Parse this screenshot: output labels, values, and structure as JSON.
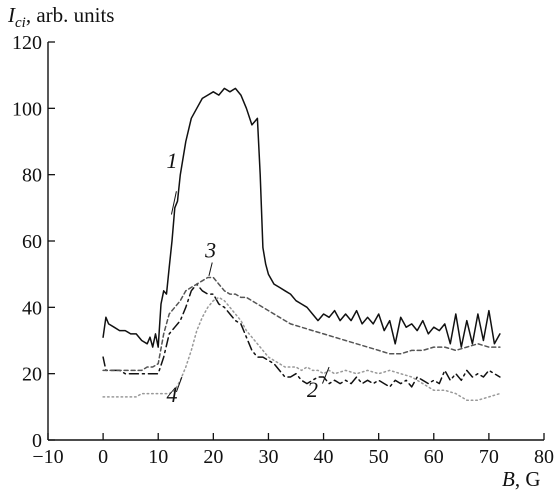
{
  "chart_data": {
    "type": "line",
    "title": "",
    "ylabel": {
      "symbol": "I",
      "subscript": "ci",
      "unit": ", arb. units"
    },
    "xlabel": {
      "symbol": "B",
      "unit": ", G"
    },
    "xlim": [
      -10,
      80
    ],
    "ylim": [
      0,
      120
    ],
    "xticks": [
      -10,
      0,
      10,
      20,
      30,
      40,
      50,
      60,
      70,
      80
    ],
    "yticks": [
      0,
      20,
      40,
      60,
      80,
      100,
      120
    ],
    "xtick_labels": [
      "−10",
      "0",
      "10",
      "20",
      "30",
      "40",
      "50",
      "60",
      "70",
      "80"
    ],
    "ytick_labels": [
      "0",
      "20",
      "40",
      "60",
      "80",
      "100",
      "120"
    ],
    "grid": false,
    "series": [
      {
        "name": "1",
        "color": "#111111",
        "dash": "solid",
        "label_at": [
          12.5,
          82
        ],
        "leader": [
          [
            13.3,
            75
          ],
          [
            12.4,
            68
          ]
        ],
        "x": [
          0,
          0.5,
          1,
          2,
          3,
          4,
          5,
          6,
          7,
          8,
          8.5,
          9,
          9.5,
          10,
          10.5,
          11,
          11.5,
          12,
          12.5,
          13,
          13.5,
          14,
          15,
          16,
          17,
          18,
          19,
          20,
          21,
          22,
          23,
          24,
          25,
          26,
          27,
          27.5,
          28,
          28.5,
          29,
          29.5,
          30,
          31,
          32,
          33,
          34,
          35,
          36,
          37,
          38,
          39,
          40,
          41,
          42,
          43,
          44,
          45,
          46,
          47,
          48,
          49,
          50,
          51,
          52,
          53,
          54,
          55,
          56,
          57,
          58,
          59,
          60,
          61,
          62,
          63,
          64,
          65,
          66,
          67,
          68,
          69,
          70,
          71,
          72
        ],
        "y": [
          31,
          37,
          35,
          34,
          33,
          33,
          32,
          32,
          30,
          29,
          31,
          28,
          32,
          28,
          41,
          45,
          44,
          52,
          60,
          70,
          72,
          80,
          90,
          97,
          100,
          103,
          104,
          105,
          104,
          106,
          105,
          106,
          104,
          100,
          95,
          96,
          97,
          80,
          58,
          53,
          50,
          47,
          46,
          45,
          44,
          42,
          41,
          40,
          38,
          36,
          38,
          37,
          39,
          36,
          38,
          36,
          39,
          35,
          37,
          35,
          38,
          33,
          36,
          29,
          37,
          34,
          35,
          33,
          36,
          32,
          34,
          33,
          35,
          29,
          38,
          28,
          36,
          29,
          38,
          30,
          39,
          29,
          32
        ]
      },
      {
        "name": "2",
        "color": "#111111",
        "dash": "9,4,2,4",
        "label_at": [
          38,
          13
        ],
        "leader": [
          [
            39.8,
            17
          ],
          [
            41,
            22
          ]
        ],
        "x": [
          0,
          0.5,
          1,
          2,
          3,
          4,
          5,
          6,
          7,
          8,
          9,
          10,
          11,
          12,
          13,
          14,
          15,
          16,
          17,
          18,
          19,
          20,
          21,
          22,
          23,
          24,
          25,
          26,
          27,
          28,
          29,
          30,
          31,
          32,
          33,
          34,
          35,
          36,
          37,
          38,
          39,
          40,
          41,
          42,
          43,
          44,
          45,
          46,
          47,
          48,
          49,
          50,
          51,
          52,
          53,
          54,
          55,
          56,
          57,
          58,
          59,
          60,
          61,
          62,
          63,
          64,
          65,
          66,
          67,
          68,
          69,
          70,
          71,
          72
        ],
        "y": [
          25,
          21,
          21,
          21,
          21,
          20,
          20,
          20,
          20,
          20,
          20,
          20,
          25,
          32,
          34,
          36,
          40,
          45,
          47,
          45,
          44,
          44,
          41,
          40,
          38,
          36,
          35,
          31,
          27,
          25,
          25,
          24,
          23,
          21,
          19,
          19,
          20,
          18,
          17,
          18,
          19,
          19,
          17,
          18,
          17,
          18,
          17,
          19,
          17,
          18,
          17,
          18,
          17,
          16,
          18,
          17,
          18,
          16,
          19,
          18,
          17,
          18,
          17,
          21,
          18,
          20,
          18,
          21,
          19,
          20,
          19,
          21,
          20,
          19
        ]
      },
      {
        "name": "3",
        "color": "#555555",
        "dash": "4,3",
        "label_at": [
          19.5,
          55
        ],
        "leader": [
          [
            19.8,
            53.5
          ],
          [
            19.2,
            49.5
          ]
        ],
        "x": [
          0,
          1,
          2,
          3,
          4,
          5,
          6,
          7,
          8,
          9,
          10,
          11,
          12,
          13,
          14,
          15,
          16,
          17,
          18,
          19,
          20,
          21,
          22,
          23,
          24,
          25,
          26,
          27,
          28,
          29,
          30,
          32,
          34,
          36,
          38,
          40,
          42,
          44,
          46,
          48,
          50,
          52,
          54,
          56,
          58,
          60,
          62,
          64,
          66,
          68,
          70,
          72
        ],
        "y": [
          21,
          21,
          21,
          21,
          21,
          21,
          21,
          21,
          22,
          22,
          23,
          32,
          38,
          40,
          42,
          45,
          46,
          47,
          48,
          49,
          49,
          47,
          45,
          44,
          44,
          43,
          43,
          42,
          41,
          40,
          39,
          37,
          35,
          34,
          33,
          32,
          31,
          30,
          29,
          28,
          27,
          26,
          26,
          27,
          27,
          28,
          28,
          27,
          28,
          29,
          28,
          28
        ]
      },
      {
        "name": "4",
        "color": "#999999",
        "dash": "1.5,3",
        "label_at": [
          12.5,
          11.5
        ],
        "leader": [
          [
            13.3,
            14.5
          ],
          [
            14.3,
            19
          ]
        ],
        "x": [
          0,
          1,
          2,
          3,
          4,
          5,
          6,
          7,
          8,
          9,
          10,
          11,
          12,
          13,
          14,
          15,
          16,
          17,
          18,
          19,
          20,
          21,
          22,
          23,
          24,
          25,
          26,
          27,
          28,
          29,
          30,
          31,
          32,
          33,
          34,
          35,
          36,
          37,
          38,
          39,
          40,
          41,
          42,
          44,
          46,
          48,
          50,
          52,
          54,
          56,
          58,
          60,
          62,
          64,
          66,
          68,
          70,
          72
        ],
        "y": [
          13,
          13,
          13,
          13,
          13,
          13,
          13,
          14,
          14,
          14,
          14,
          14,
          14,
          15,
          18,
          22,
          27,
          33,
          37,
          40,
          42,
          43,
          42,
          40,
          38,
          36,
          33,
          31,
          29,
          27,
          25,
          24,
          23,
          22,
          22,
          22,
          21,
          22,
          21,
          21,
          20,
          21,
          20,
          21,
          20,
          21,
          20,
          21,
          20,
          19,
          17,
          15,
          15,
          14,
          12,
          12,
          13,
          14
        ]
      }
    ]
  }
}
